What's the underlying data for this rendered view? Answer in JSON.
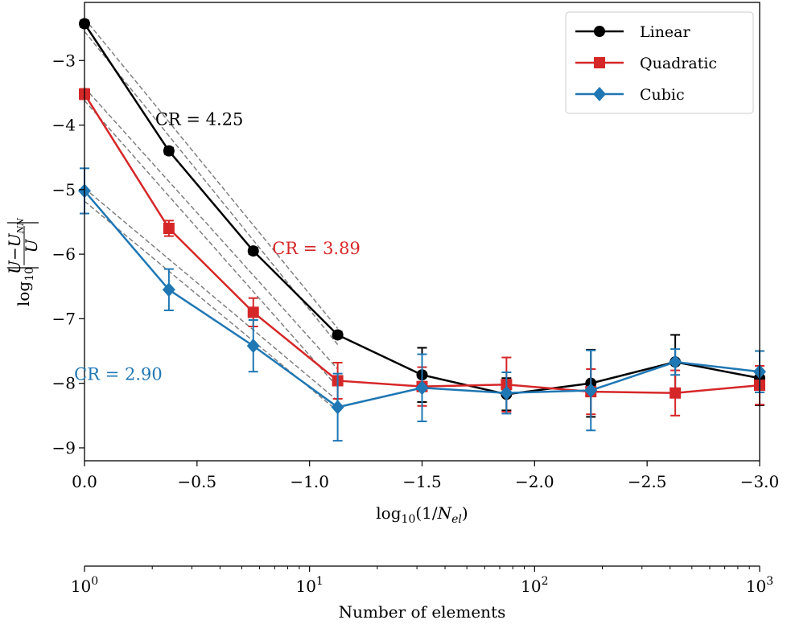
{
  "chart_data": {
    "type": "line",
    "xlabel": "log₁₀(1/N_el)",
    "ylabel": "log₁₀|(U−U_NN)/U|",
    "xlim": [
      0.0,
      -3.0
    ],
    "ylim": [
      -9.2,
      -2.1
    ],
    "x_ticks": [
      0.0,
      -0.5,
      -1.0,
      -1.5,
      -2.0,
      -2.5,
      -3.0
    ],
    "x_tick_labels": [
      "0.0",
      "−0.5",
      "−1.0",
      "−1.5",
      "−2.0",
      "−2.5",
      "−3.0"
    ],
    "y_ticks": [
      -3,
      -4,
      -5,
      -6,
      -7,
      -8,
      -9
    ],
    "y_tick_labels": [
      "−3",
      "−4",
      "−5",
      "−6",
      "−7",
      "−8",
      "−9"
    ],
    "grid": false,
    "legend_position": "top-right",
    "x": [
      0.0,
      -0.375,
      -0.75,
      -1.125,
      -1.5,
      -1.875,
      -2.25,
      -2.625,
      -3.0
    ],
    "series": [
      {
        "name": "Linear",
        "color": "#000000",
        "marker": "circle",
        "y": [
          -2.43,
          -4.4,
          -5.95,
          -7.25,
          -7.87,
          -8.17,
          -8.0,
          -7.67,
          -7.92
        ],
        "err": [
          0.05,
          0.05,
          0.05,
          0.05,
          0.42,
          0.25,
          0.52,
          0.42,
          0.42
        ]
      },
      {
        "name": "Quadratic",
        "color": "#d62728",
        "marker": "square",
        "y": [
          -3.52,
          -5.6,
          -6.9,
          -7.96,
          -8.05,
          -8.02,
          -8.13,
          -8.15,
          -8.03
        ],
        "err": [
          0.08,
          0.12,
          0.22,
          0.28,
          0.3,
          0.42,
          0.35,
          0.35,
          0.3
        ]
      },
      {
        "name": "Cubic",
        "color": "#1f77b4",
        "marker": "diamond",
        "y": [
          -5.02,
          -6.55,
          -7.42,
          -8.37,
          -8.07,
          -8.15,
          -8.11,
          -7.67,
          -7.82
        ],
        "err": [
          0.35,
          0.32,
          0.4,
          0.52,
          0.52,
          0.32,
          0.62,
          0.2,
          0.32
        ]
      }
    ],
    "fit_lines": [
      {
        "color": "#808080",
        "style": "dashed",
        "x": [
          0.0,
          -1.125
        ],
        "y": [
          -2.55,
          -7.4
        ]
      },
      {
        "color": "#808080",
        "style": "dashed",
        "x": [
          0.0,
          -1.125
        ],
        "y": [
          -2.35,
          -7.15
        ]
      },
      {
        "color": "#808080",
        "style": "dashed",
        "x": [
          0.0,
          -1.125
        ],
        "y": [
          -3.62,
          -8.06
        ]
      },
      {
        "color": "#808080",
        "style": "dashed",
        "x": [
          0.0,
          -1.125
        ],
        "y": [
          -3.42,
          -7.78
        ]
      },
      {
        "color": "#808080",
        "style": "dashed",
        "x": [
          0.0,
          -1.125
        ],
        "y": [
          -5.18,
          -8.43
        ]
      },
      {
        "color": "#808080",
        "style": "dashed",
        "x": [
          0.0,
          -1.125
        ],
        "y": [
          -4.98,
          -8.27
        ]
      }
    ],
    "annotations": [
      {
        "text": "CR = 4.25",
        "x": -0.51,
        "y": -4.0,
        "color": "#000000"
      },
      {
        "text": "CR = 3.89",
        "x": -1.03,
        "y": -6.0,
        "color": "#d62728"
      },
      {
        "text": "CR = 2.90",
        "x": -0.15,
        "y": -7.95,
        "color": "#1f77b4"
      }
    ],
    "secondary_axis": {
      "label": "Number of elements",
      "scale": "log",
      "xlim": [
        1,
        1000
      ],
      "ticks": [
        {
          "base": "10",
          "exp": "0"
        },
        {
          "base": "10",
          "exp": "1"
        },
        {
          "base": "10",
          "exp": "2"
        },
        {
          "base": "10",
          "exp": "3"
        }
      ]
    }
  }
}
